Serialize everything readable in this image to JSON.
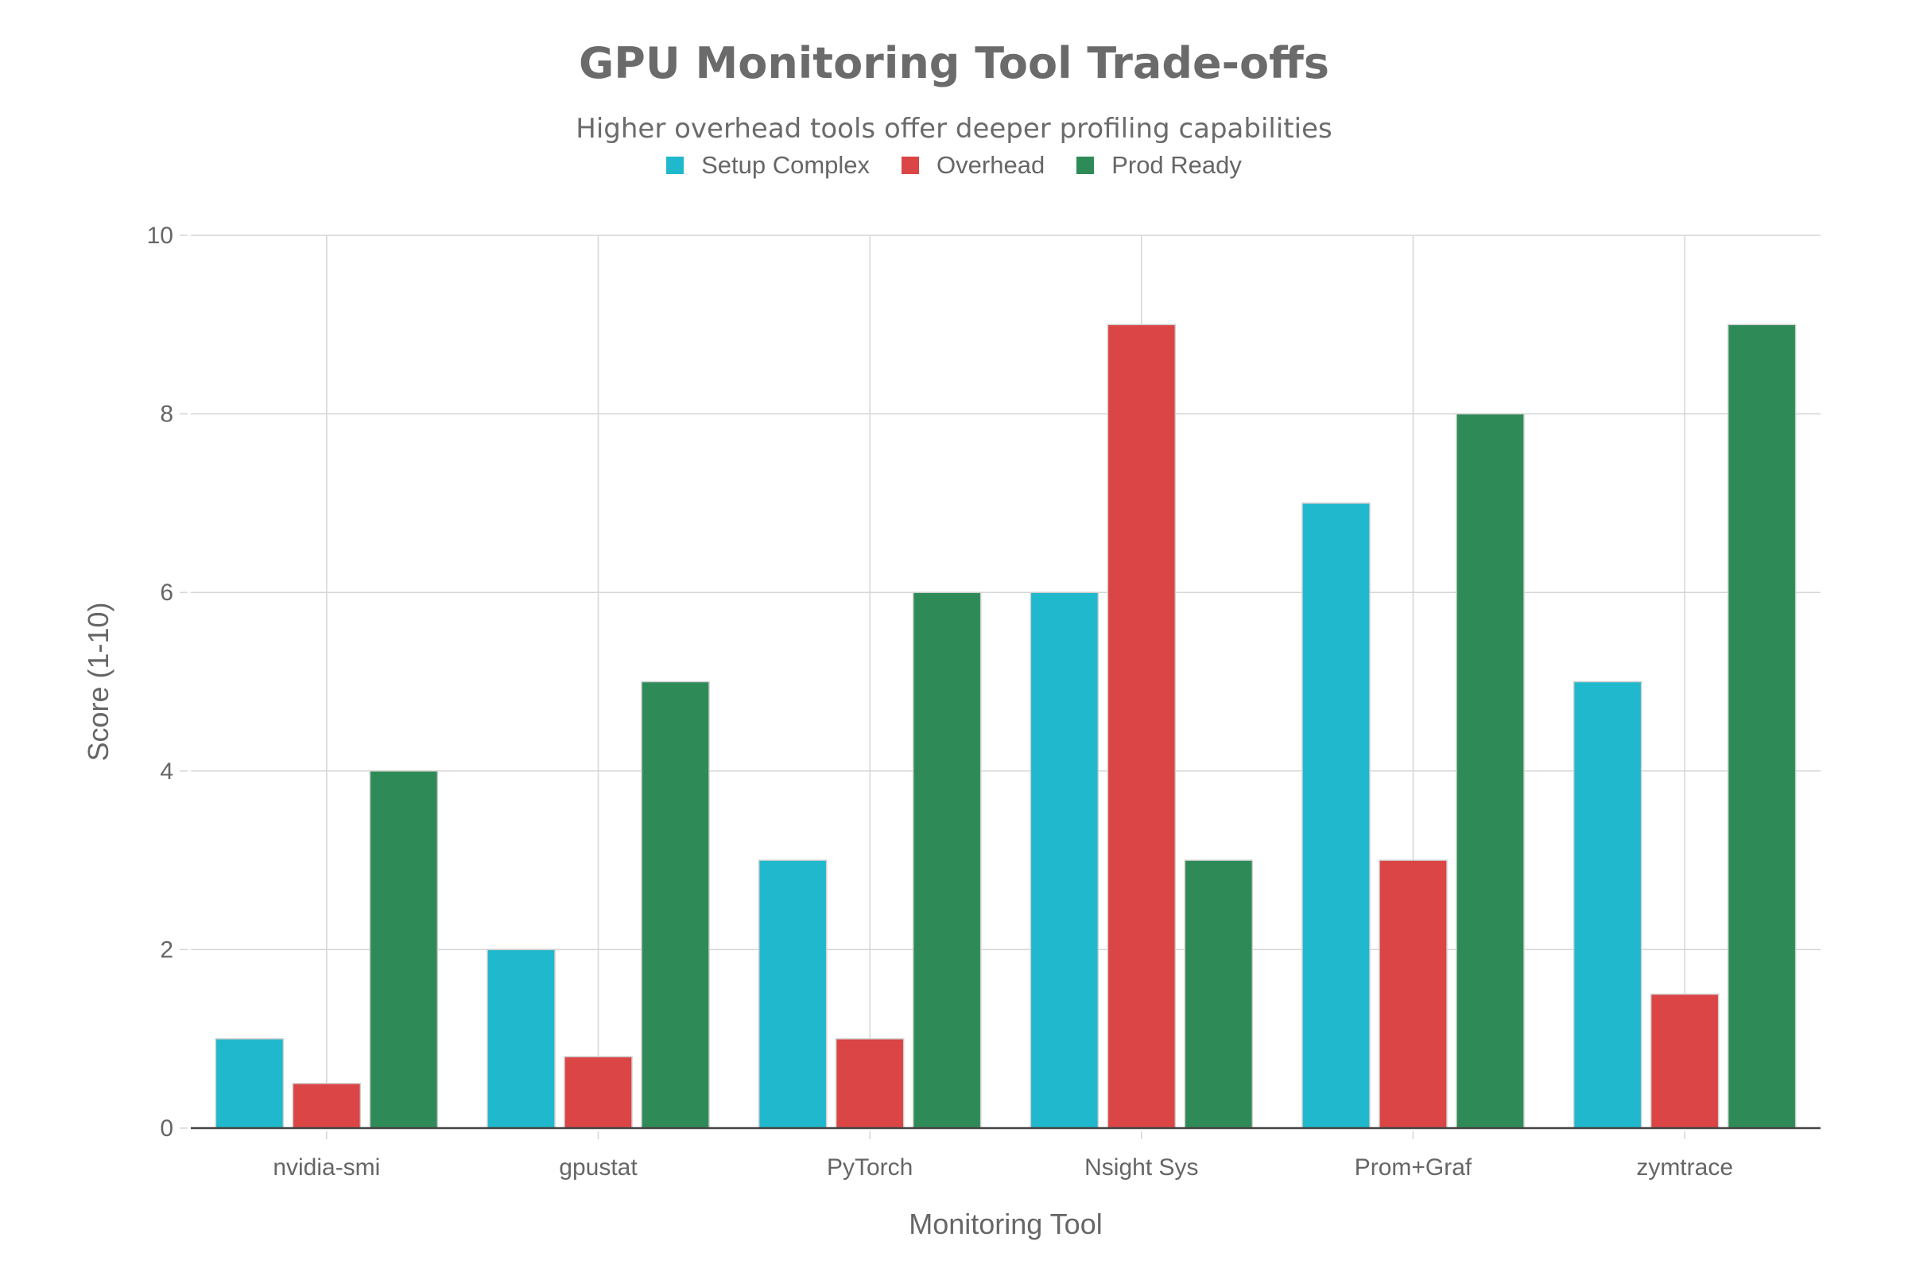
{
  "chart_data": {
    "type": "bar",
    "title": "GPU Monitoring Tool Trade-offs",
    "subtitle": "Higher overhead tools offer deeper profiling capabilities",
    "xlabel": "Monitoring Tool",
    "ylabel": "Score (1-10)",
    "ylim": [
      0,
      10
    ],
    "yticks": [
      "0",
      "2",
      "4",
      "6",
      "8",
      "10"
    ],
    "grid": true,
    "legend_position": "top",
    "categories": [
      "nvidia-smi",
      "gpustat",
      "PyTorch",
      "Nsight Sys",
      "Prom+Graf",
      "zymtrace"
    ],
    "series": [
      {
        "name": "Setup Complex",
        "color": "#20b8cd",
        "values": [
          1,
          2,
          3,
          6,
          7,
          5
        ]
      },
      {
        "name": "Overhead",
        "color": "#db4545",
        "values": [
          0.5,
          0.8,
          1,
          9,
          3,
          1.5
        ]
      },
      {
        "name": "Prod Ready",
        "color": "#2e8b57",
        "values": [
          4,
          5,
          6,
          3,
          8,
          9
        ]
      }
    ]
  }
}
